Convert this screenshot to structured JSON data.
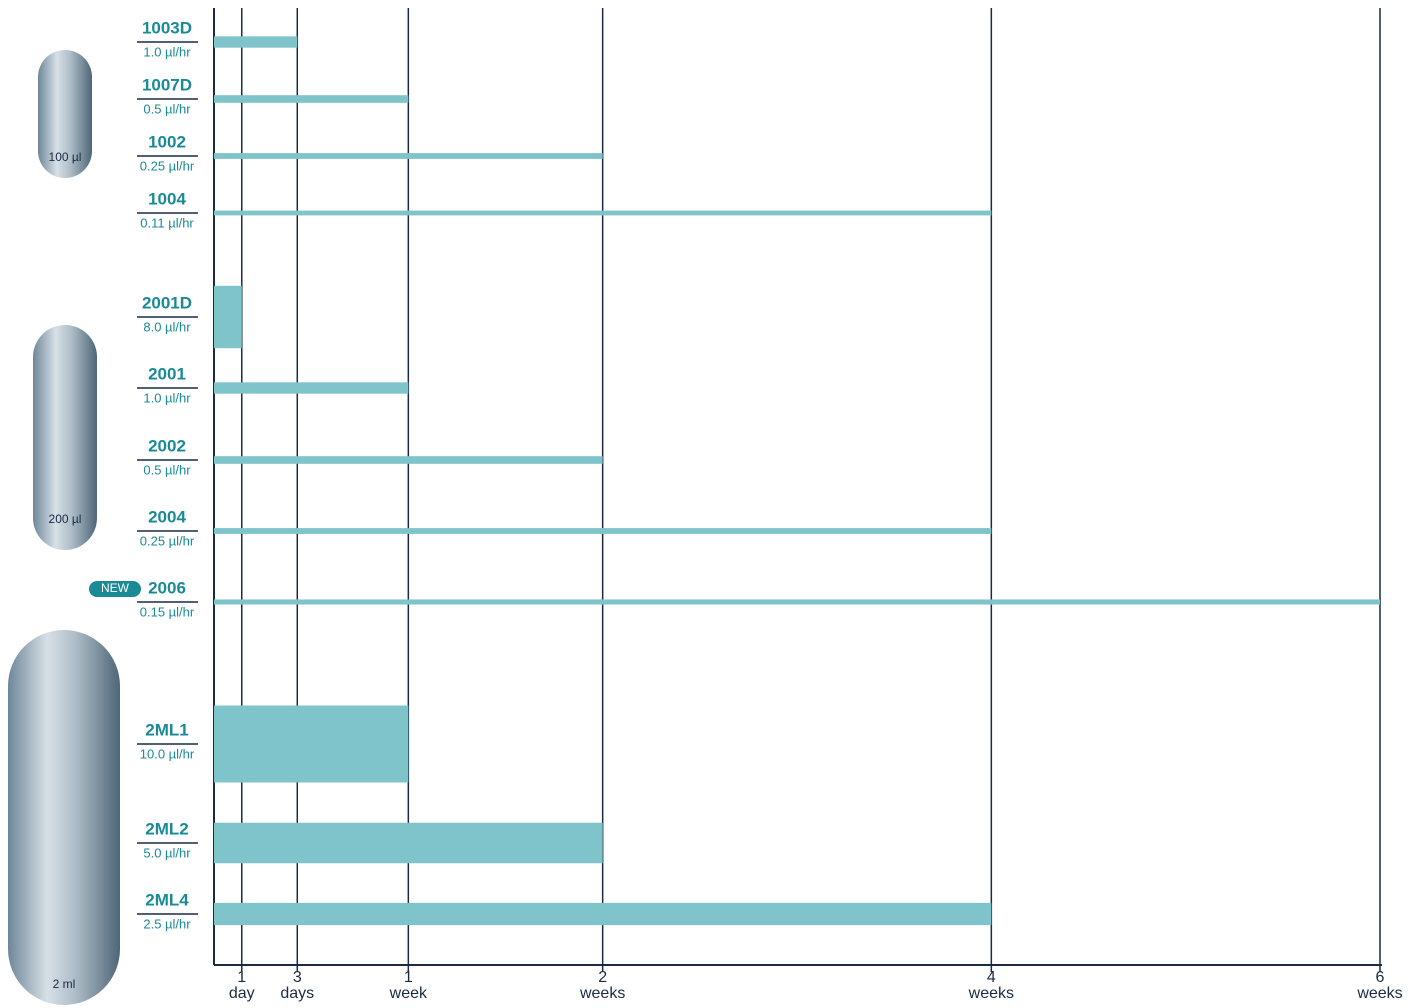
{
  "chart_data": {
    "type": "bar",
    "orientation": "horizontal",
    "color": "#80c4cb",
    "xlim": [
      0,
      42
    ],
    "xticks": [
      {
        "value": 1,
        "label": "1 day"
      },
      {
        "value": 3,
        "label": "3 days"
      },
      {
        "value": 7,
        "label": "1 week"
      },
      {
        "value": 14,
        "label": "2 weeks"
      },
      {
        "value": 28,
        "label": "4 weeks"
      },
      {
        "value": 42,
        "label": "6 weeks"
      }
    ],
    "groups": [
      {
        "label": "100 µl",
        "pumps": [
          {
            "name": "1003D",
            "rate": 1.0,
            "rate_label": "1.0 µl/hr",
            "days": 3
          },
          {
            "name": "1007D",
            "rate": 0.5,
            "rate_label": "0.5 µl/hr",
            "days": 7
          },
          {
            "name": "1002",
            "rate": 0.25,
            "rate_label": "0.25 µl/hr",
            "days": 14
          },
          {
            "name": "1004",
            "rate": 0.11,
            "rate_label": "0.11 µl/hr",
            "days": 28
          }
        ]
      },
      {
        "label": "200 µl",
        "pumps": [
          {
            "name": "2001D",
            "rate": 8.0,
            "rate_label": "8.0 µl/hr",
            "days": 1
          },
          {
            "name": "2001",
            "rate": 1.0,
            "rate_label": "1.0 µl/hr",
            "days": 7
          },
          {
            "name": "2002",
            "rate": 0.5,
            "rate_label": "0.5 µl/hr",
            "days": 14
          },
          {
            "name": "2004",
            "rate": 0.25,
            "rate_label": "0.25 µl/hr",
            "days": 28
          },
          {
            "name": "2006",
            "rate": 0.15,
            "rate_label": "0.15 µl/hr",
            "days": 42,
            "badge": "NEW"
          }
        ]
      },
      {
        "label": "2 ml",
        "pumps": [
          {
            "name": "2ML1",
            "rate": 10.0,
            "rate_label": "10.0 µl/hr",
            "days": 7
          },
          {
            "name": "2ML2",
            "rate": 5.0,
            "rate_label": "5.0 µl/hr",
            "days": 14
          },
          {
            "name": "2ML4",
            "rate": 2.5,
            "rate_label": "2.5 µl/hr",
            "days": 28
          }
        ]
      }
    ]
  }
}
